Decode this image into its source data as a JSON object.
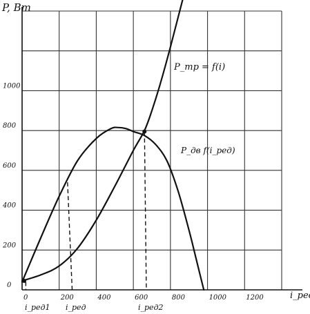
{
  "chart_data": {
    "type": "line",
    "ylabel": "P, Вт",
    "xlabel": "i_ред",
    "xlim": [
      0,
      1400
    ],
    "ylim": [
      0,
      1400
    ],
    "x_ticks": [
      "0",
      "200",
      "400",
      "600",
      "800",
      "1000",
      "1200"
    ],
    "y_ticks": [
      "0",
      "200",
      "400",
      "600",
      "800",
      "1000"
    ],
    "grid": true,
    "series": [
      {
        "name": "P_тр = f(i)",
        "x": [
          0,
          100,
          200,
          300,
          400,
          500,
          600,
          660,
          700,
          750,
          800,
          850,
          900
        ],
        "y": [
          45,
          75,
          120,
          210,
          350,
          520,
          700,
          800,
          900,
          1050,
          1220,
          1400,
          1580
        ]
      },
      {
        "name": "P_дв = f(i_ред)",
        "x": [
          0,
          100,
          200,
          300,
          400,
          480,
          520,
          560,
          600,
          660,
          720,
          780,
          840,
          900,
          940,
          980
        ],
        "y": [
          40,
          260,
          470,
          650,
          760,
          810,
          815,
          810,
          795,
          775,
          730,
          650,
          500,
          300,
          150,
          0
        ]
      }
    ],
    "annotations": {
      "x_markers": [
        "i_ред1",
        "i_ред",
        "i_ред2"
      ],
      "curve_labels": [
        "P_тр = f(i)",
        "P_дв f(i_ред)"
      ]
    }
  }
}
